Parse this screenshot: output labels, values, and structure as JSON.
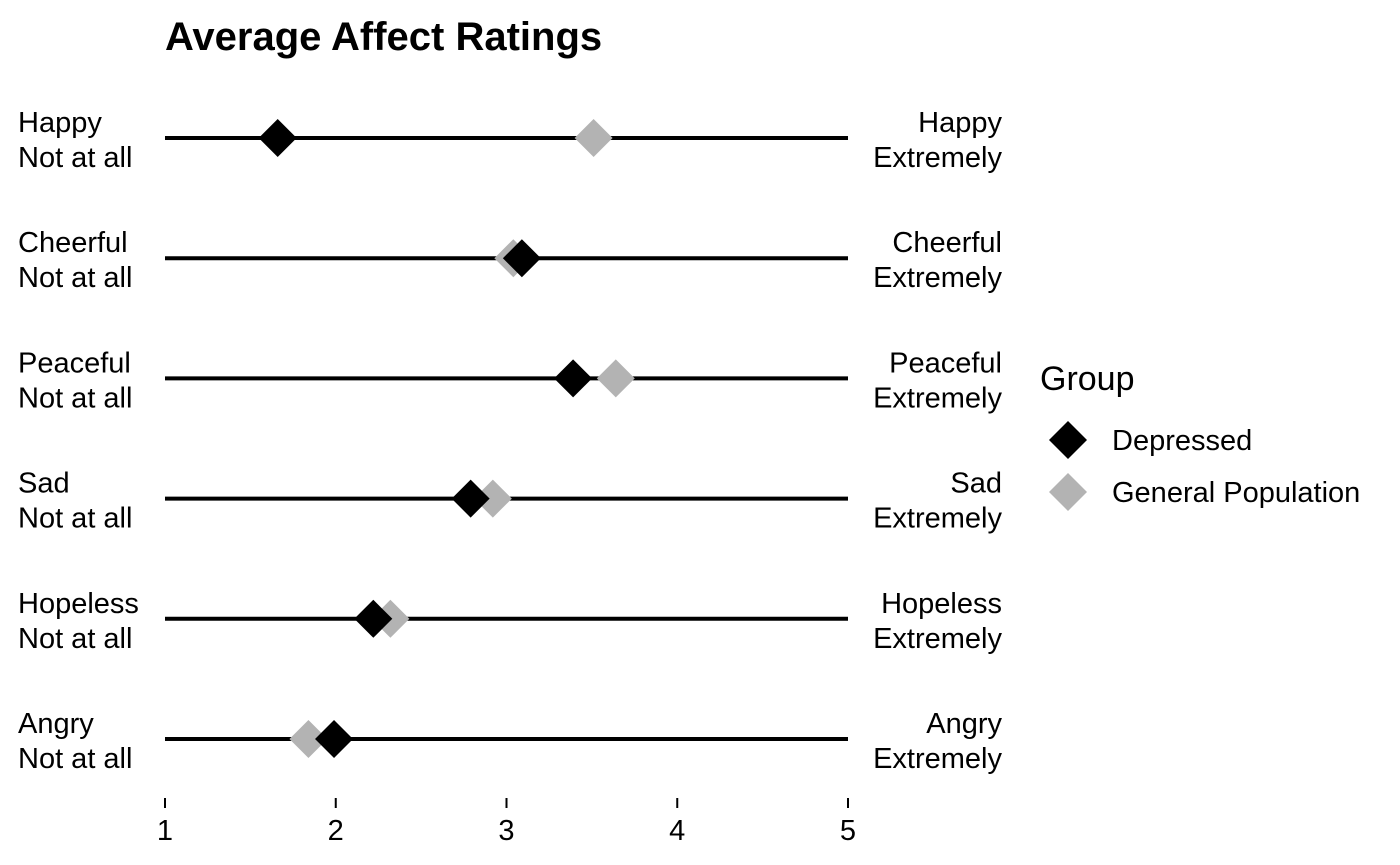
{
  "chart_data": {
    "type": "scatter",
    "title": "Average Affect Ratings",
    "xlim": [
      1,
      5
    ],
    "x_ticks": [
      "1",
      "2",
      "3",
      "4",
      "5"
    ],
    "grid": false,
    "legend_position": "right",
    "legend_title": "Group",
    "rows": [
      {
        "label": "Happy",
        "left_anchor": "Not at all",
        "right_anchor": "Extremely"
      },
      {
        "label": "Cheerful",
        "left_anchor": "Not at all",
        "right_anchor": "Extremely"
      },
      {
        "label": "Peaceful",
        "left_anchor": "Not at all",
        "right_anchor": "Extremely"
      },
      {
        "label": "Sad",
        "left_anchor": "Not at all",
        "right_anchor": "Extremely"
      },
      {
        "label": "Hopeless",
        "left_anchor": "Not at all",
        "right_anchor": "Extremely"
      },
      {
        "label": "Angry",
        "left_anchor": "Not at all",
        "right_anchor": "Extremely"
      }
    ],
    "series": [
      {
        "name": "Depressed",
        "color": "#000000",
        "values": [
          1.66,
          3.09,
          3.39,
          2.79,
          2.22,
          1.99
        ]
      },
      {
        "name": "General Population",
        "color": "#b3b3b3",
        "values": [
          3.51,
          3.04,
          3.64,
          2.92,
          2.32,
          1.84
        ]
      }
    ]
  }
}
